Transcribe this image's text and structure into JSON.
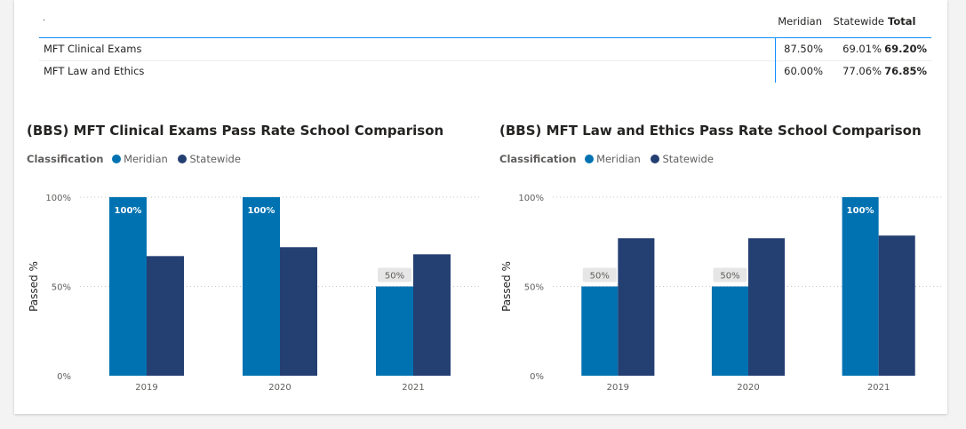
{
  "colors": {
    "meridian": "#0072b2",
    "statewide": "#243f72",
    "accent": "#118dff"
  },
  "matrix": {
    "corner_mark": ".",
    "columns": [
      "Meridian",
      "Statewide",
      "Total"
    ],
    "rows": [
      {
        "label": "MFT Clinical Exams",
        "values": [
          "87.50%",
          "69.01%",
          "69.20%"
        ]
      },
      {
        "label": "MFT Law and Ethics",
        "values": [
          "60.00%",
          "77.06%",
          "76.85%"
        ]
      }
    ]
  },
  "chart_data": [
    {
      "type": "bar",
      "title": "(BBS) MFT Clinical Exams Pass Rate School Comparison",
      "legend_title": "Classification",
      "legend_position": "top-left",
      "categories": [
        "2019",
        "2020",
        "2021"
      ],
      "series": [
        {
          "name": "Meridian",
          "values": [
            100,
            100,
            50
          ],
          "labels": [
            "100%",
            "100%",
            "50%"
          ]
        },
        {
          "name": "Statewide",
          "values": [
            67,
            72,
            68
          ]
        }
      ],
      "xlabel": "",
      "ylabel": "Passed %",
      "ylim": [
        0,
        100
      ],
      "yticks": [
        0,
        50,
        100
      ],
      "ytick_labels": [
        "0%",
        "50%",
        "100%"
      ],
      "grid": true
    },
    {
      "type": "bar",
      "title": "(BBS) MFT Law and Ethics Pass Rate School Comparison",
      "legend_title": "Classification",
      "legend_position": "top-left",
      "categories": [
        "2019",
        "2020",
        "2021"
      ],
      "series": [
        {
          "name": "Meridian",
          "values": [
            50,
            50,
            100
          ],
          "labels": [
            "50%",
            "50%",
            "100%"
          ]
        },
        {
          "name": "Statewide",
          "values": [
            77,
            77,
            78.5
          ]
        }
      ],
      "xlabel": "",
      "ylabel": "Passed %",
      "ylim": [
        0,
        100
      ],
      "yticks": [
        0,
        50,
        100
      ],
      "ytick_labels": [
        "0%",
        "50%",
        "100%"
      ],
      "grid": true
    }
  ]
}
